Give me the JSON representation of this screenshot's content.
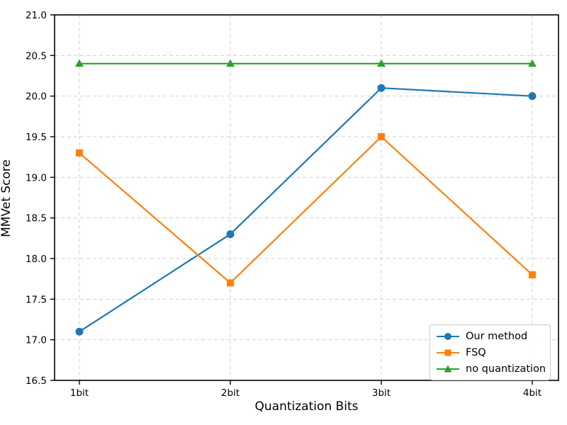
{
  "chart_data": {
    "type": "line",
    "title": "",
    "xlabel": "Quantization Bits",
    "ylabel": "MMVet Score",
    "categories": [
      "1bit",
      "2bit",
      "3bit",
      "4bit"
    ],
    "series": [
      {
        "name": "Our method",
        "marker": "circle",
        "color": "#1f77b4",
        "values": [
          17.1,
          18.3,
          20.1,
          20.0
        ]
      },
      {
        "name": "FSQ",
        "marker": "square",
        "color": "#ff7f0e",
        "values": [
          19.3,
          17.7,
          19.5,
          17.8
        ]
      },
      {
        "name": "no quantization",
        "marker": "triangle",
        "color": "#2ca02c",
        "values": [
          20.4,
          20.4,
          20.4,
          20.4
        ]
      }
    ],
    "ylim": [
      16.5,
      21.0
    ],
    "yticks": [
      16.5,
      17.0,
      17.5,
      18.0,
      18.5,
      19.0,
      19.5,
      20.0,
      20.5,
      21.0
    ],
    "grid": "dashed",
    "grid_color": "#cfcfcf",
    "axis_color": "#000000",
    "legend_position": "lower right"
  }
}
